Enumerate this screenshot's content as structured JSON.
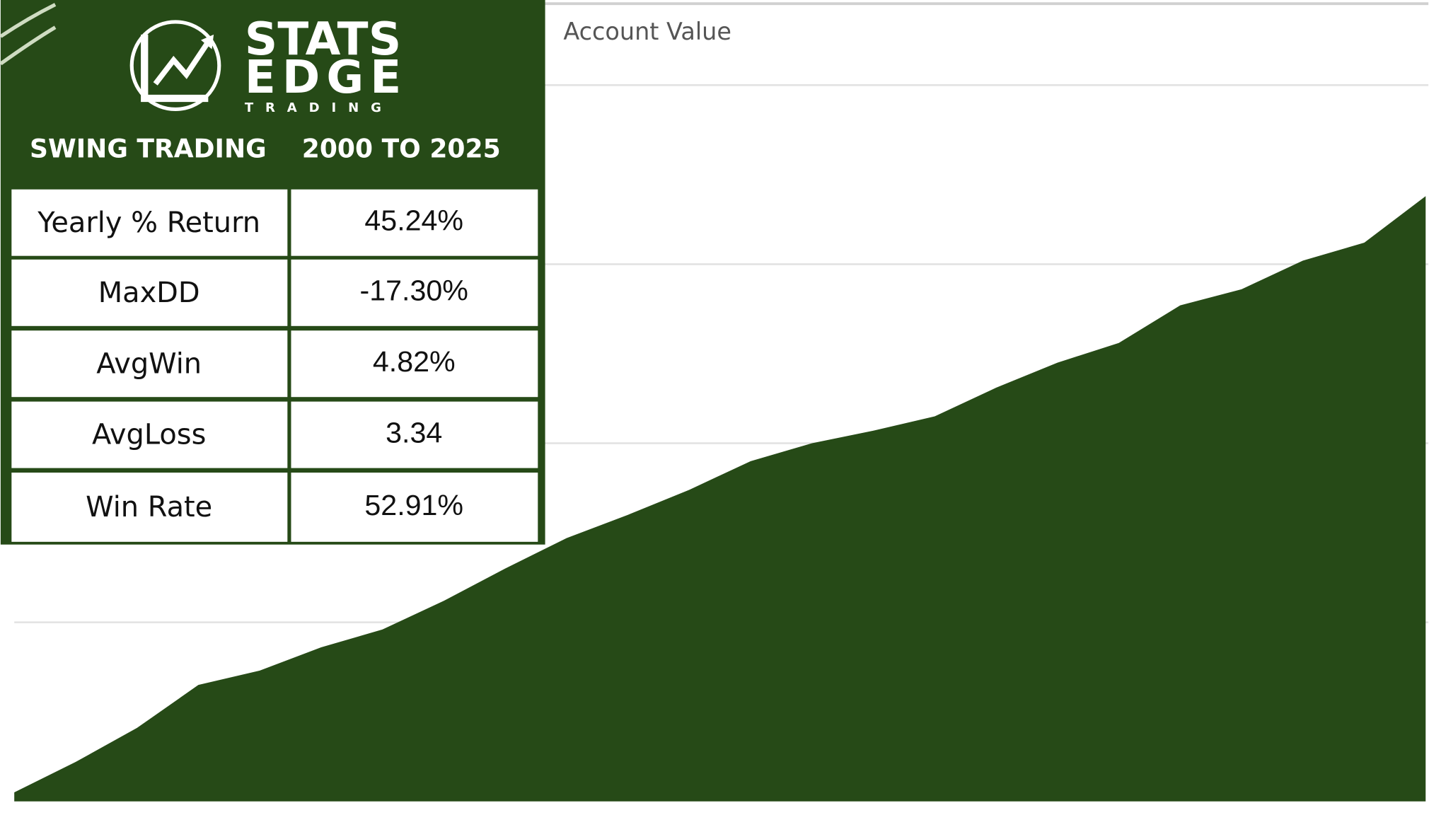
{
  "chart_data": {
    "type": "area",
    "title": "Account Value",
    "color": "#264a17",
    "values": [
      0.05,
      0.22,
      0.41,
      0.65,
      0.73,
      0.86,
      0.96,
      1.12,
      1.3,
      1.47,
      1.6,
      1.74,
      1.9,
      2.0,
      2.07,
      2.15,
      2.31,
      2.45,
      2.56,
      2.77,
      2.86,
      3.02,
      3.12,
      3.38
    ],
    "ylim": [
      0,
      4.45
    ],
    "gridlines": [
      1,
      2,
      3,
      4
    ]
  },
  "panel": {
    "logo": {
      "line1": "STATS",
      "line2": "EDGE",
      "line3": "T R A D I N G"
    },
    "header": [
      "SWING TRADING",
      "2000 TO 2025"
    ],
    "rows": [
      [
        "Yearly % Return",
        "45.24%"
      ],
      [
        "MaxDD",
        "-17.30%"
      ],
      [
        "AvgWin",
        "4.82%"
      ],
      [
        "AvgLoss",
        "3.34"
      ],
      [
        "Win Rate",
        "52.91%"
      ]
    ]
  }
}
